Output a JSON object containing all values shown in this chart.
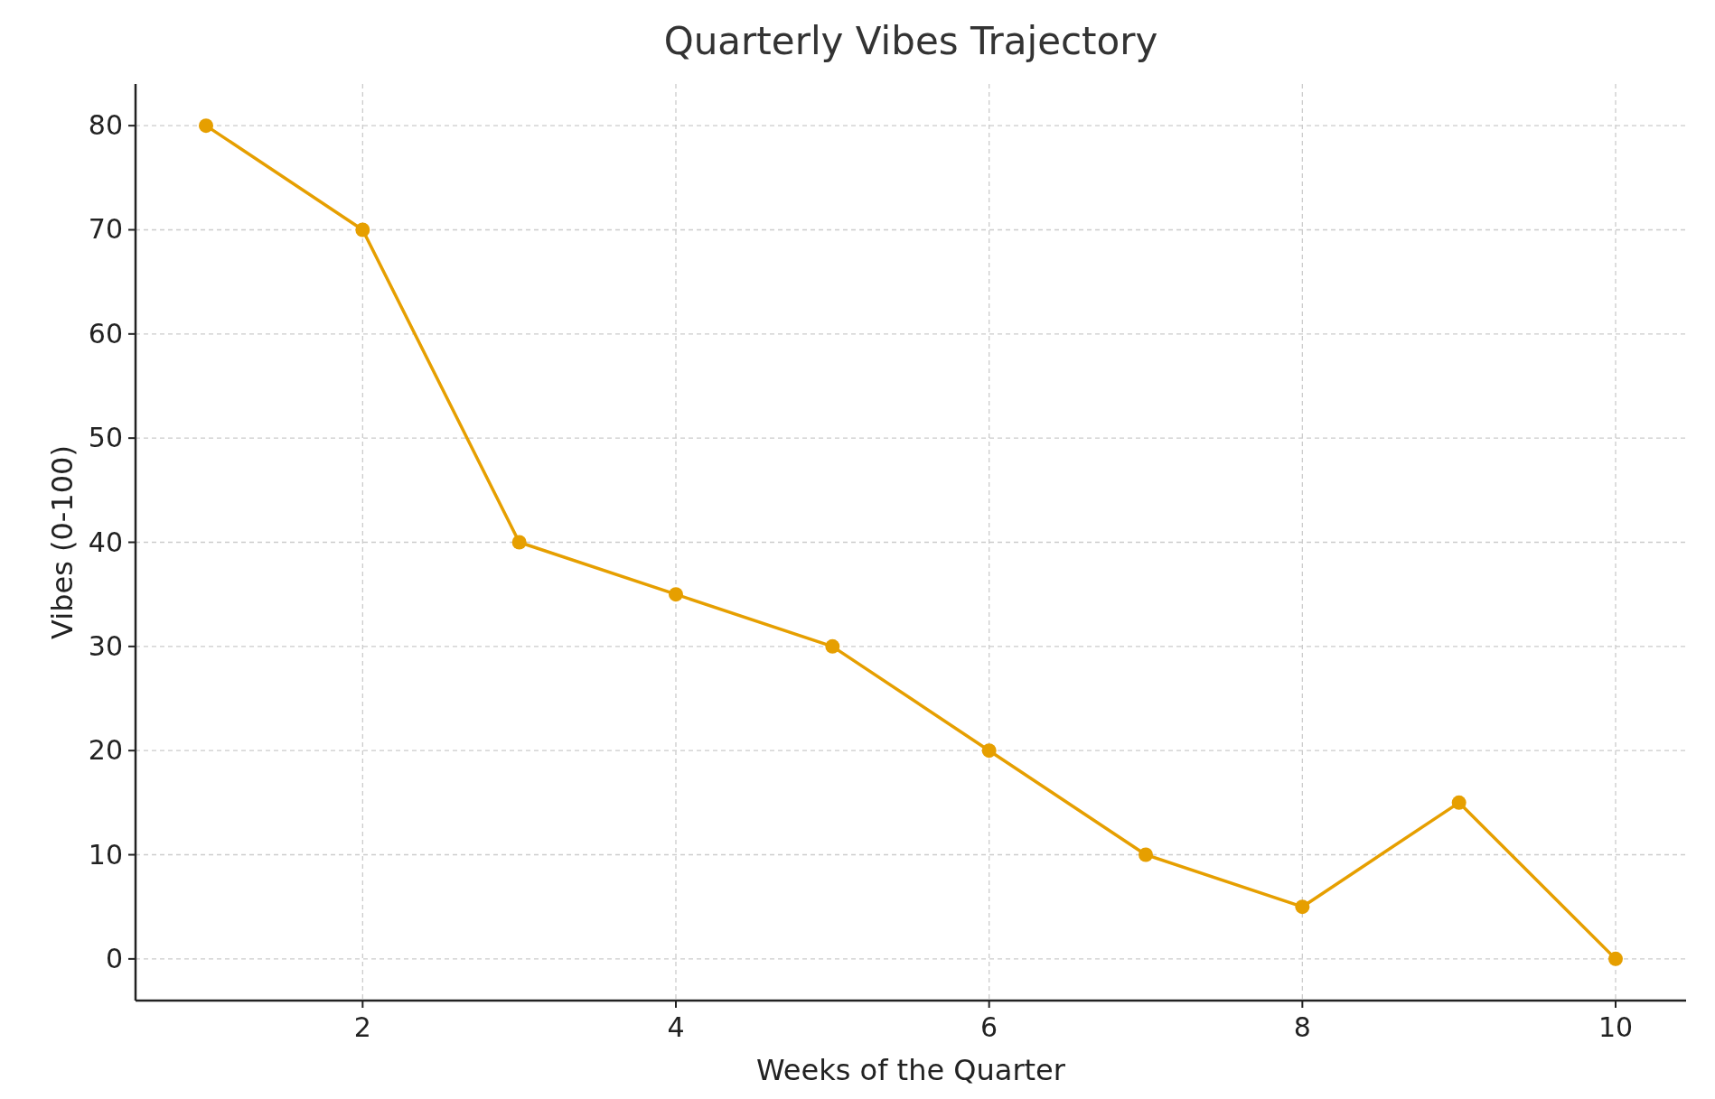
{
  "chart_data": {
    "type": "line",
    "title": "Quarterly Vibes Trajectory",
    "xlabel": "Weeks of the Quarter",
    "ylabel": "Vibes (0-100)",
    "x": [
      1,
      2,
      3,
      4,
      5,
      6,
      7,
      8,
      9,
      10
    ],
    "series": [
      {
        "color": "#e69f00",
        "values": [
          80,
          70,
          40,
          35,
          30,
          20,
          10,
          5,
          15,
          0
        ]
      }
    ],
    "xlim": [
      0.55,
      10.45
    ],
    "ylim": [
      -4,
      84
    ],
    "xticks": [
      2,
      4,
      6,
      8,
      10
    ],
    "yticks": [
      0,
      10,
      20,
      30,
      40,
      50,
      60,
      70,
      80
    ],
    "grid": true,
    "marker": "circle",
    "line_style": "solid"
  }
}
